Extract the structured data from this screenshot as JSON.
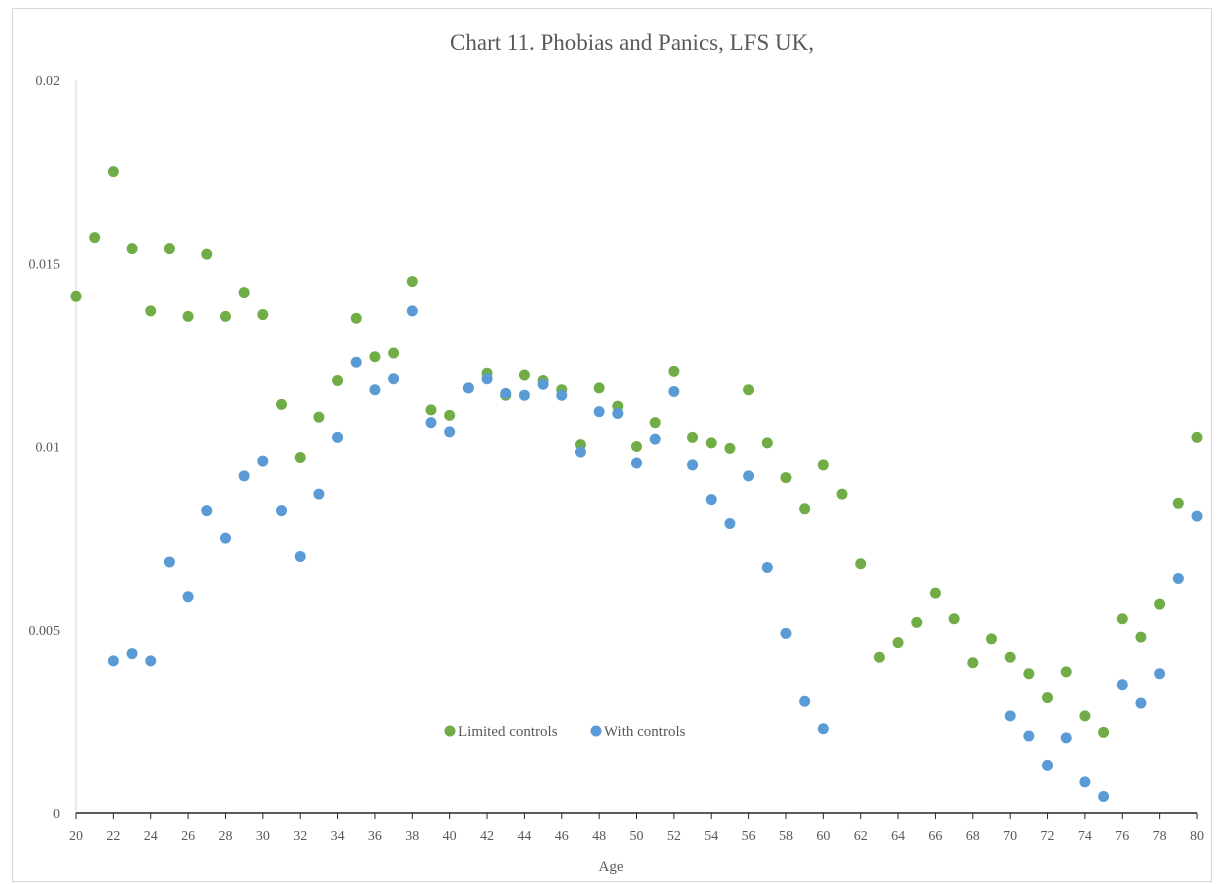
{
  "chart_data": {
    "type": "scatter",
    "title": "Chart 11.  Phobias and Panics, LFS UK,",
    "xlabel": "Age",
    "ylabel": "",
    "xlim": [
      20,
      80
    ],
    "ylim": [
      0,
      0.02
    ],
    "x_ticks": [
      20,
      22,
      24,
      26,
      28,
      30,
      32,
      34,
      36,
      38,
      40,
      42,
      44,
      46,
      48,
      50,
      52,
      54,
      56,
      58,
      60,
      62,
      64,
      66,
      68,
      70,
      72,
      74,
      76,
      78,
      80
    ],
    "y_ticks": [
      {
        "value": 0,
        "label": "0"
      },
      {
        "value": 0.005,
        "label": "0.005"
      },
      {
        "value": 0.01,
        "label": "0.01"
      },
      {
        "value": 0.015,
        "label": "0.015"
      },
      {
        "value": 0.02,
        "label": "0.02"
      }
    ],
    "grid": false,
    "legend_position": "bottom-center",
    "series": [
      {
        "name": "Limited controls",
        "color": "#70ad47",
        "points": [
          [
            20,
            0.0141
          ],
          [
            21,
            0.0157
          ],
          [
            22,
            0.0175
          ],
          [
            23,
            0.0154
          ],
          [
            24,
            0.0137
          ],
          [
            25,
            0.0154
          ],
          [
            26,
            0.01355
          ],
          [
            27,
            0.01525
          ],
          [
            28,
            0.01355
          ],
          [
            29,
            0.0142
          ],
          [
            30,
            0.0136
          ],
          [
            31,
            0.01115
          ],
          [
            32,
            0.0097
          ],
          [
            33,
            0.0108
          ],
          [
            34,
            0.0118
          ],
          [
            35,
            0.0135
          ],
          [
            36,
            0.01245
          ],
          [
            37,
            0.01255
          ],
          [
            38,
            0.0145
          ],
          [
            39,
            0.011
          ],
          [
            40,
            0.01085
          ],
          [
            41,
            0.0116
          ],
          [
            42,
            0.012
          ],
          [
            43,
            0.0114
          ],
          [
            44,
            0.01195
          ],
          [
            45,
            0.0118
          ],
          [
            46,
            0.01155
          ],
          [
            47,
            0.01005
          ],
          [
            48,
            0.0116
          ],
          [
            49,
            0.0111
          ],
          [
            50,
            0.01
          ],
          [
            51,
            0.01065
          ],
          [
            52,
            0.01205
          ],
          [
            53,
            0.01025
          ],
          [
            54,
            0.0101
          ],
          [
            55,
            0.00995
          ],
          [
            56,
            0.01155
          ],
          [
            57,
            0.0101
          ],
          [
            58,
            0.00915
          ],
          [
            59,
            0.0083
          ],
          [
            60,
            0.0095
          ],
          [
            61,
            0.0087
          ],
          [
            62,
            0.0068
          ],
          [
            63,
            0.00425
          ],
          [
            64,
            0.00465
          ],
          [
            65,
            0.0052
          ],
          [
            66,
            0.006
          ],
          [
            67,
            0.0053
          ],
          [
            68,
            0.0041
          ],
          [
            69,
            0.00475
          ],
          [
            70,
            0.00425
          ],
          [
            71,
            0.0038
          ],
          [
            72,
            0.00315
          ],
          [
            73,
            0.00385
          ],
          [
            74,
            0.00265
          ],
          [
            75,
            0.0022
          ],
          [
            76,
            0.0053
          ],
          [
            77,
            0.0048
          ],
          [
            78,
            0.0057
          ],
          [
            79,
            0.00845
          ],
          [
            80,
            0.01025
          ]
        ]
      },
      {
        "name": "With controls",
        "color": "#5b9bd5",
        "points": [
          [
            22,
            0.00415
          ],
          [
            23,
            0.00435
          ],
          [
            24,
            0.00415
          ],
          [
            25,
            0.00685
          ],
          [
            26,
            0.0059
          ],
          [
            27,
            0.00825
          ],
          [
            28,
            0.0075
          ],
          [
            29,
            0.0092
          ],
          [
            30,
            0.0096
          ],
          [
            31,
            0.00825
          ],
          [
            32,
            0.007
          ],
          [
            33,
            0.0087
          ],
          [
            34,
            0.01025
          ],
          [
            35,
            0.0123
          ],
          [
            36,
            0.01155
          ],
          [
            37,
            0.01185
          ],
          [
            38,
            0.0137
          ],
          [
            39,
            0.01065
          ],
          [
            40,
            0.0104
          ],
          [
            41,
            0.0116
          ],
          [
            42,
            0.01185
          ],
          [
            43,
            0.01145
          ],
          [
            44,
            0.0114
          ],
          [
            45,
            0.0117
          ],
          [
            46,
            0.0114
          ],
          [
            47,
            0.00985
          ],
          [
            48,
            0.01095
          ],
          [
            49,
            0.0109
          ],
          [
            50,
            0.00955
          ],
          [
            51,
            0.0102
          ],
          [
            52,
            0.0115
          ],
          [
            53,
            0.0095
          ],
          [
            54,
            0.00855
          ],
          [
            55,
            0.0079
          ],
          [
            56,
            0.0092
          ],
          [
            57,
            0.0067
          ],
          [
            58,
            0.0049
          ],
          [
            59,
            0.00305
          ],
          [
            60,
            0.0023
          ],
          [
            70,
            0.00265
          ],
          [
            71,
            0.0021
          ],
          [
            72,
            0.0013
          ],
          [
            73,
            0.00205
          ],
          [
            74,
            0.00085
          ],
          [
            75,
            0.00045
          ],
          [
            76,
            0.0035
          ],
          [
            77,
            0.003
          ],
          [
            78,
            0.0038
          ],
          [
            79,
            0.0064
          ],
          [
            80,
            0.0081
          ]
        ]
      }
    ]
  }
}
